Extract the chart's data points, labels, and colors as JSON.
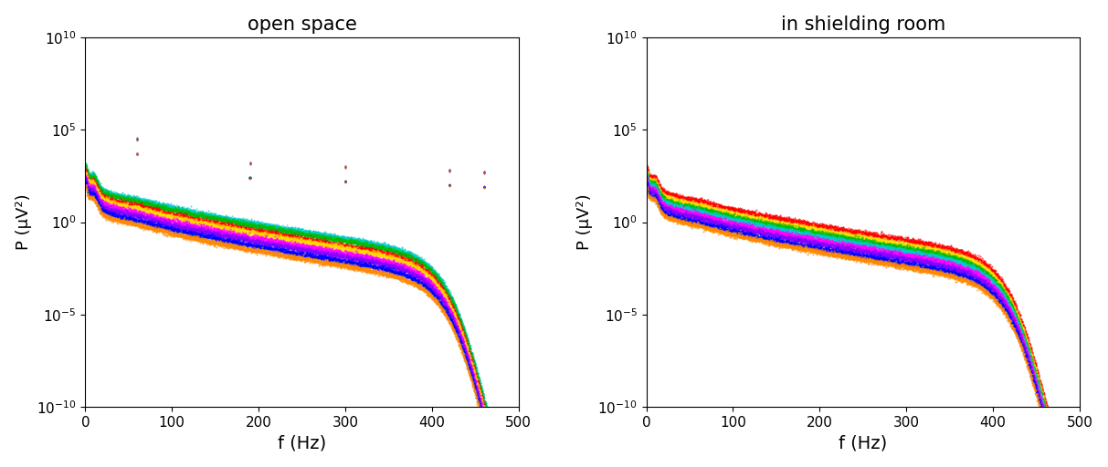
{
  "title_left": "open space",
  "title_right": "in shielding room",
  "xlabel": "f (Hz)",
  "ylabel": "P (μV²)",
  "xlim": [
    0,
    500
  ],
  "ylim_log": [
    -10,
    10
  ],
  "figsize": [
    12.13,
    5.12
  ],
  "dpi": 100,
  "colors_open": [
    "#00CCCC",
    "#00BB00",
    "#FF0000",
    "#FFDD00",
    "#FF00FF",
    "#8800FF",
    "#0000FF",
    "#FF8800"
  ],
  "colors_shielded": [
    "#FF0000",
    "#FFDD00",
    "#00BB00",
    "#00CCCC",
    "#FF00FF",
    "#8800FF",
    "#0000FF",
    "#FF8800"
  ],
  "offsets_open": [
    0.55,
    0.45,
    0.25,
    0.15,
    -0.05,
    -0.2,
    -0.4,
    -0.6
  ],
  "offsets_shielded": [
    0.45,
    0.25,
    0.12,
    0.0,
    -0.15,
    -0.3,
    -0.5,
    -0.65
  ],
  "spike_freqs": [
    60,
    190,
    300,
    420,
    460
  ],
  "spike_heights_log": [
    4.5,
    3.2,
    3.0,
    2.8,
    2.7
  ],
  "alpha_base": 1.0,
  "cutoff_freq": 460,
  "cutoff_steepness": 0.045
}
